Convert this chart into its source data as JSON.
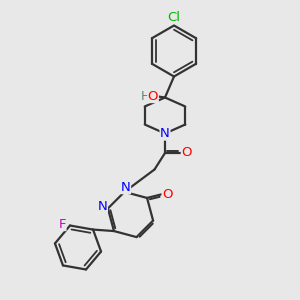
{
  "background_color": "#e8e8e8",
  "bond_color_dark": "#333333",
  "atom_colors": {
    "Cl": "#00bb00",
    "O": "#ff0000",
    "N": "#0000ff",
    "F": "#cc00cc",
    "H": "#558888"
  },
  "font_size": 9.5,
  "fig_width": 3.0,
  "fig_height": 3.0,
  "dpi": 100,
  "xlim": [
    0,
    10
  ],
  "ylim": [
    0,
    10
  ]
}
